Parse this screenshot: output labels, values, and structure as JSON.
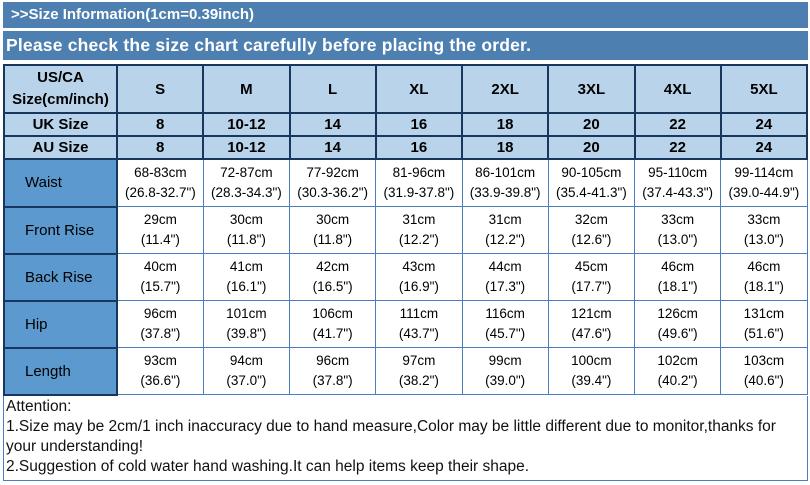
{
  "header": {
    "title": ">>Size Information(1cm=0.39inch)",
    "subtitle": "Please check the size chart carefully before placing the order."
  },
  "size_chart": {
    "corner_label": "US/CA\nSize(cm/inch)",
    "size_columns": [
      "S",
      "M",
      "L",
      "XL",
      "2XL",
      "3XL",
      "4XL",
      "5XL"
    ],
    "region_rows": [
      {
        "label": "UK Size",
        "values": [
          "8",
          "10-12",
          "14",
          "16",
          "18",
          "20",
          "22",
          "24"
        ]
      },
      {
        "label": "AU Size",
        "values": [
          "8",
          "10-12",
          "14",
          "16",
          "18",
          "20",
          "22",
          "24"
        ]
      }
    ],
    "measurement_rows": [
      {
        "label": "Waist",
        "cm": [
          "68-83cm",
          "72-87cm",
          "77-92cm",
          "81-96cm",
          "86-101cm",
          "90-105cm",
          "95-110cm",
          "99-114cm"
        ],
        "inch": [
          "(26.8-32.7\")",
          "(28.3-34.3\")",
          "(30.3-36.2\")",
          "(31.9-37.8\")",
          "(33.9-39.8\")",
          "(35.4-41.3\")",
          "(37.4-43.3\")",
          "(39.0-44.9\")"
        ]
      },
      {
        "label": "Front Rise",
        "cm": [
          "29cm",
          "30cm",
          "30cm",
          "31cm",
          "31cm",
          "32cm",
          "33cm",
          "33cm"
        ],
        "inch": [
          "(11.4\")",
          "(11.8\")",
          "(11.8\")",
          "(12.2\")",
          "(12.2\")",
          "(12.6\")",
          "(13.0\")",
          "(13.0\")"
        ]
      },
      {
        "label": "Back Rise",
        "cm": [
          "40cm",
          "41cm",
          "42cm",
          "43cm",
          "44cm",
          "45cm",
          "46cm",
          "46cm"
        ],
        "inch": [
          "(15.7\")",
          "(16.1\")",
          "(16.5\")",
          "(16.9\")",
          "(17.3\")",
          "(17.7\")",
          "(18.1\")",
          "(18.1\")"
        ]
      },
      {
        "label": "Hip",
        "cm": [
          "96cm",
          "101cm",
          "106cm",
          "111cm",
          "116cm",
          "121cm",
          "126cm",
          "131cm"
        ],
        "inch": [
          "(37.8\")",
          "(39.8\")",
          "(41.7\")",
          "(43.7\")",
          "(45.7\")",
          "(47.6\")",
          "(49.6\")",
          "(51.6\")"
        ]
      },
      {
        "label": "Length",
        "cm": [
          "93cm",
          "94cm",
          "96cm",
          "97cm",
          "99cm",
          "100cm",
          "102cm",
          "103cm"
        ],
        "inch": [
          "(36.6\")",
          "(37.0\")",
          "(37.8\")",
          "(38.2\")",
          "(39.0\")",
          "(39.4\")",
          "(40.2\")",
          "(40.6\")"
        ]
      }
    ]
  },
  "attention": {
    "title": "Attention:",
    "notes": [
      "1.Size may be 2cm/1 inch inaccuracy due to hand measure,Color may be little different due to monitor,thanks for your understanding!",
      "2.Suggestion of cold water hand washing.It can help items keep their shape."
    ]
  },
  "colors": {
    "banner_blue": "#4e7fb1",
    "header_cell_blue": "#b9d3ea",
    "label_cell_blue": "#5c99ce",
    "dark_border": "#17375e",
    "light_border": "#4a7dbd"
  }
}
